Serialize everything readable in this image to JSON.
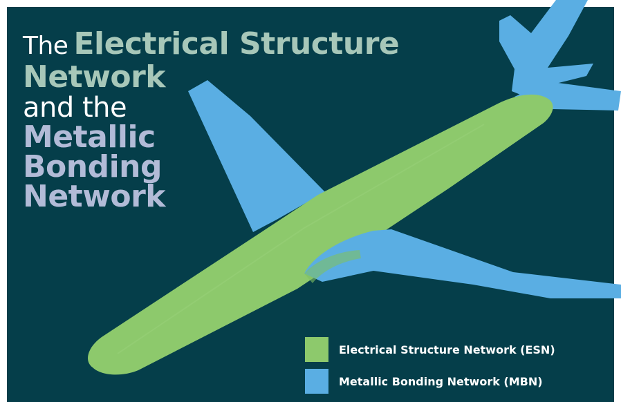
{
  "title": {
    "line1_prefix": "The",
    "line1_highlight": "Electrical Structure",
    "line2": "Network",
    "line3": "and the",
    "line4": "Metallic",
    "line5": "Bonding",
    "line6": "Network"
  },
  "legend": {
    "items": [
      {
        "label": "Electrical Structure Network (ESN)",
        "color": "#8dc96c"
      },
      {
        "label": "Metallic Bonding Network (MBN)",
        "color": "#5aaee3"
      }
    ]
  },
  "colors": {
    "background": "#053e4a",
    "esn": "#8dc96c",
    "mbn": "#5aaee3",
    "title_green": "#a7c7b9",
    "title_purple": "#b2bbd7"
  }
}
